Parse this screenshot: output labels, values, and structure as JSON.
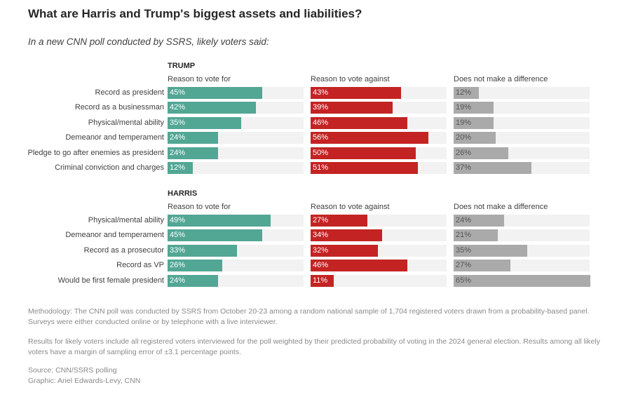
{
  "chart_data": {
    "type": "bar",
    "title": "What are Harris and Trump's biggest assets and liabilities?",
    "subtitle": "In a new CNN poll conducted by SSRS, likely voters said:",
    "columns": [
      "Reason to vote for",
      "Reason to vote against",
      "Does not make a difference"
    ],
    "colors": [
      "#52a694",
      "#c42323",
      "#aaaaaa"
    ],
    "track_color": "#f2f2f2",
    "unit": "%",
    "sections": [
      {
        "name": "TRUMP",
        "categories": [
          "Record as president",
          "Record as a businessman",
          "Physical/mental ability",
          "Demeanor and temperament",
          "Pledge to go after enemies as president",
          "Criminal conviction and charges"
        ],
        "series": [
          {
            "name": "Reason to vote for",
            "values": [
              45,
              42,
              35,
              24,
              24,
              12
            ]
          },
          {
            "name": "Reason to vote against",
            "values": [
              43,
              39,
              46,
              56,
              50,
              51
            ]
          },
          {
            "name": "Does not make a difference",
            "values": [
              12,
              19,
              19,
              20,
              26,
              37
            ]
          }
        ]
      },
      {
        "name": "HARRIS",
        "categories": [
          "Physical/mental ability",
          "Demeanor and temperament",
          "Record as a prosecutor",
          "Record as VP",
          "Would be first female president"
        ],
        "series": [
          {
            "name": "Reason to vote for",
            "values": [
              49,
              45,
              33,
              26,
              24
            ]
          },
          {
            "name": "Reason to vote against",
            "values": [
              27,
              34,
              32,
              46,
              11
            ]
          },
          {
            "name": "Does not make a difference",
            "values": [
              24,
              21,
              35,
              27,
              65
            ]
          }
        ]
      }
    ]
  },
  "notes": {
    "methodology": "Methodology: The CNN poll was conducted by SSRS from October 20-23 among a random national sample of 1,704 registered voters drawn from a probability-based panel. Surveys were either conducted online or by telephone with a live interviewer.",
    "results": "Results for likely voters include all registered voters interviewed for the poll weighted by their predicted probability of voting in the 2024 general election. Results among all likely voters have a margin of sampling error of ±3.1 percentage points.",
    "source": "Source: CNN/SSRS polling",
    "graphic": "Graphic: Ariel Edwards-Levy, CNN"
  }
}
